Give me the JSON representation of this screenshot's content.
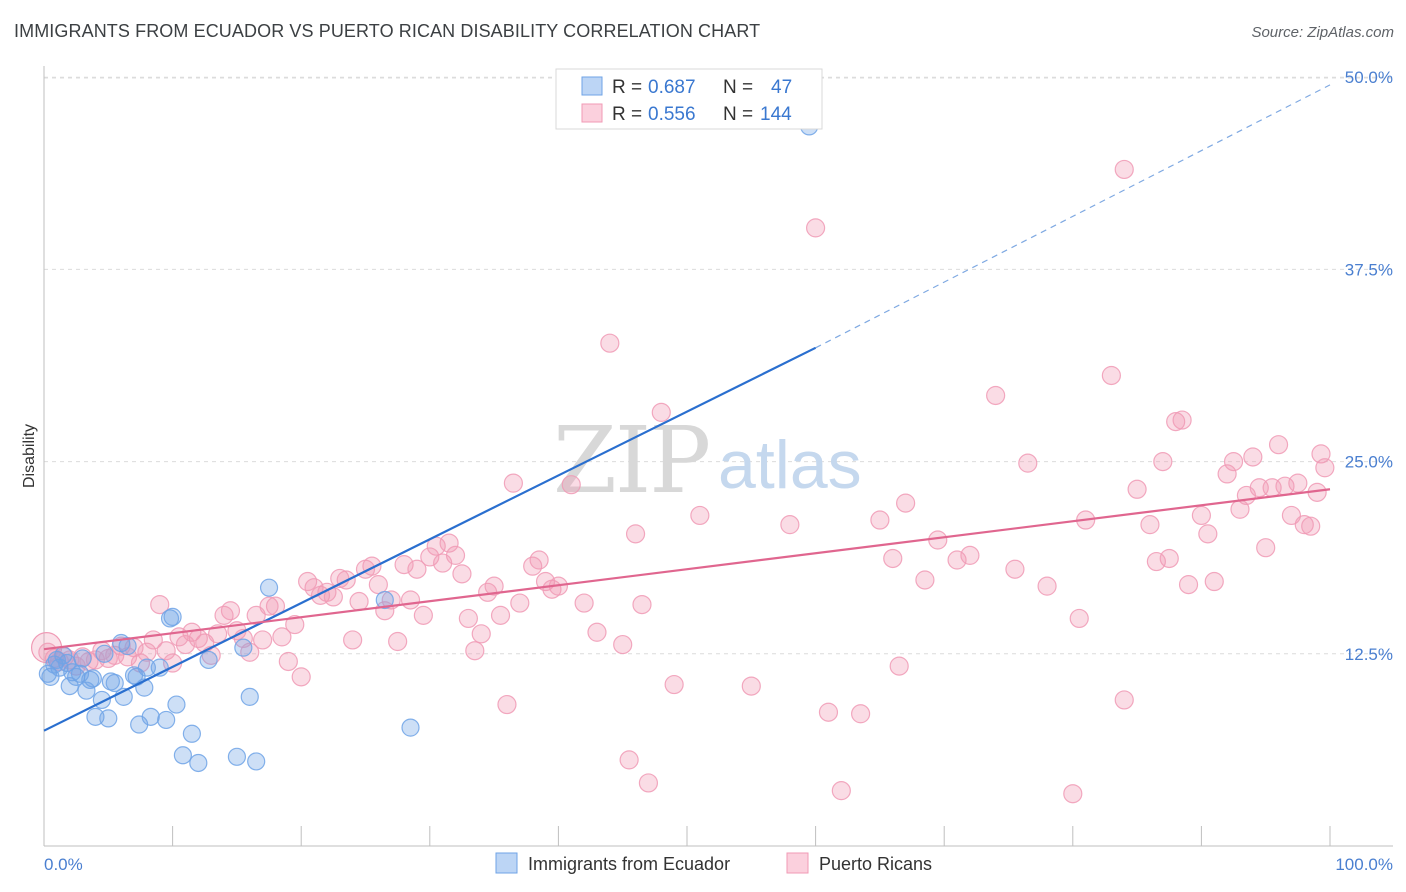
{
  "title": "IMMIGRANTS FROM ECUADOR VS PUERTO RICAN DISABILITY CORRELATION CHART",
  "source": "Source: ZipAtlas.com",
  "colors": {
    "blue": "#6fa3e6",
    "blue_line": "#2a6fcf",
    "pink": "#f09ab5",
    "pink_line": "#e0668f",
    "grid": "#dcdcdc",
    "tick_text": "#4a7fd0"
  },
  "legend": {
    "rows": [
      {
        "r_label": "R =",
        "r_value": "0.687",
        "n_label": "N =",
        "n_value": "47",
        "color": "#6fa3e6"
      },
      {
        "r_label": "R =",
        "r_value": "0.556",
        "n_label": "N =",
        "n_value": "144",
        "color": "#f09ab5"
      }
    ]
  },
  "watermark": {
    "zip": "ZIP",
    "atlas": "atlas"
  },
  "chart_data": {
    "type": "scatter",
    "xlabel": "",
    "ylabel": "Disability",
    "xlim": [
      0,
      100
    ],
    "ylim": [
      0,
      52
    ],
    "x_tick_labels": [
      "0.0%",
      "100.0%"
    ],
    "y_ticks": [
      12.5,
      25.0,
      37.5,
      50.0
    ],
    "y_tick_labels": [
      "12.5%",
      "25.0%",
      "37.5%",
      "50.0%"
    ],
    "grid": true,
    "legend_position": "top-center",
    "series": [
      {
        "name": "Immigrants from Ecuador",
        "color": "#6fa3e6",
        "points": [
          [
            0.3,
            11.2
          ],
          [
            0.5,
            11.0
          ],
          [
            0.8,
            11.8
          ],
          [
            1.0,
            12.1
          ],
          [
            1.2,
            11.6
          ],
          [
            1.5,
            12.4
          ],
          [
            1.8,
            11.9
          ],
          [
            2.0,
            10.4
          ],
          [
            2.2,
            11.3
          ],
          [
            2.5,
            11.0
          ],
          [
            2.8,
            11.2
          ],
          [
            3.0,
            12.2
          ],
          [
            3.3,
            10.1
          ],
          [
            3.6,
            10.8
          ],
          [
            3.8,
            10.9
          ],
          [
            4.0,
            8.4
          ],
          [
            4.5,
            9.5
          ],
          [
            4.7,
            12.5
          ],
          [
            5.0,
            8.3
          ],
          [
            5.2,
            10.7
          ],
          [
            5.5,
            10.6
          ],
          [
            6.0,
            13.2
          ],
          [
            6.2,
            9.7
          ],
          [
            6.5,
            13.0
          ],
          [
            7.0,
            11.1
          ],
          [
            7.2,
            11.0
          ],
          [
            7.4,
            7.9
          ],
          [
            7.8,
            10.3
          ],
          [
            8.0,
            11.6
          ],
          [
            8.3,
            8.4
          ],
          [
            9.0,
            11.6
          ],
          [
            9.5,
            8.2
          ],
          [
            9.8,
            14.8
          ],
          [
            10.0,
            14.9
          ],
          [
            10.3,
            9.2
          ],
          [
            10.8,
            5.9
          ],
          [
            11.5,
            7.3
          ],
          [
            12.0,
            5.4
          ],
          [
            12.8,
            12.1
          ],
          [
            15.0,
            5.8
          ],
          [
            15.5,
            12.9
          ],
          [
            16.0,
            9.7
          ],
          [
            16.5,
            5.5
          ],
          [
            17.5,
            16.8
          ],
          [
            26.5,
            16.0
          ],
          [
            28.5,
            7.7
          ],
          [
            59.5,
            46.8
          ]
        ],
        "trend": {
          "x0": 0,
          "y0": 7.5,
          "x1": 60,
          "y1": 32.4,
          "dash_to_x": 100,
          "dash_to_y": 49.5
        }
      },
      {
        "name": "Puerto Ricans",
        "color": "#f09ab5",
        "points": [
          [
            0.3,
            12.6
          ],
          [
            0.8,
            12.2
          ],
          [
            1.2,
            12.0
          ],
          [
            1.6,
            12.3
          ],
          [
            2.0,
            12.1
          ],
          [
            2.5,
            11.7
          ],
          [
            3.0,
            12.3
          ],
          [
            3.5,
            12.0
          ],
          [
            4.0,
            12.1
          ],
          [
            4.5,
            12.7
          ],
          [
            5.0,
            12.2
          ],
          [
            5.5,
            12.4
          ],
          [
            6.0,
            13.0
          ],
          [
            6.5,
            12.3
          ],
          [
            7.0,
            12.9
          ],
          [
            7.5,
            11.9
          ],
          [
            8.0,
            12.6
          ],
          [
            8.5,
            13.4
          ],
          [
            9.0,
            15.7
          ],
          [
            9.5,
            12.7
          ],
          [
            10.0,
            11.9
          ],
          [
            10.5,
            13.6
          ],
          [
            11.0,
            13.1
          ],
          [
            11.5,
            13.9
          ],
          [
            12.0,
            13.5
          ],
          [
            12.5,
            13.2
          ],
          [
            13.0,
            12.4
          ],
          [
            13.5,
            13.8
          ],
          [
            14.0,
            15.0
          ],
          [
            14.5,
            15.3
          ],
          [
            15.0,
            14.0
          ],
          [
            15.5,
            13.5
          ],
          [
            16.0,
            12.6
          ],
          [
            16.5,
            15.0
          ],
          [
            17.0,
            13.4
          ],
          [
            17.5,
            15.6
          ],
          [
            18.0,
            15.6
          ],
          [
            18.5,
            13.6
          ],
          [
            19.0,
            12.0
          ],
          [
            19.5,
            14.4
          ],
          [
            20.0,
            11.0
          ],
          [
            20.5,
            17.2
          ],
          [
            21.0,
            16.8
          ],
          [
            21.5,
            16.3
          ],
          [
            22.0,
            16.5
          ],
          [
            22.5,
            16.2
          ],
          [
            23.0,
            17.4
          ],
          [
            23.5,
            17.3
          ],
          [
            24.0,
            13.4
          ],
          [
            24.5,
            15.9
          ],
          [
            25.0,
            18.0
          ],
          [
            25.5,
            18.2
          ],
          [
            26.0,
            17.0
          ],
          [
            26.5,
            15.3
          ],
          [
            27.0,
            16.0
          ],
          [
            27.5,
            13.3
          ],
          [
            28.0,
            18.3
          ],
          [
            28.5,
            16.0
          ],
          [
            29.0,
            18.0
          ],
          [
            29.5,
            15.0
          ],
          [
            30.0,
            18.8
          ],
          [
            30.5,
            19.5
          ],
          [
            31.0,
            18.4
          ],
          [
            31.5,
            19.7
          ],
          [
            32.0,
            18.9
          ],
          [
            32.5,
            17.7
          ],
          [
            33.0,
            14.8
          ],
          [
            33.5,
            12.7
          ],
          [
            34.0,
            13.8
          ],
          [
            34.5,
            16.5
          ],
          [
            35.0,
            16.9
          ],
          [
            35.5,
            15.0
          ],
          [
            36.0,
            9.2
          ],
          [
            36.5,
            23.6
          ],
          [
            37.0,
            15.8
          ],
          [
            38.0,
            18.2
          ],
          [
            38.5,
            18.6
          ],
          [
            39.0,
            17.2
          ],
          [
            39.5,
            16.7
          ],
          [
            40.0,
            16.9
          ],
          [
            41.0,
            23.5
          ],
          [
            42.0,
            15.8
          ],
          [
            43.0,
            13.9
          ],
          [
            44.0,
            32.7
          ],
          [
            45.0,
            13.1
          ],
          [
            45.5,
            5.6
          ],
          [
            46.0,
            20.3
          ],
          [
            46.5,
            15.7
          ],
          [
            47.0,
            4.1
          ],
          [
            48.0,
            28.2
          ],
          [
            49.0,
            10.5
          ],
          [
            51.0,
            21.5
          ],
          [
            55.0,
            10.4
          ],
          [
            58.0,
            20.9
          ],
          [
            60.0,
            40.2
          ],
          [
            61.0,
            8.7
          ],
          [
            62.0,
            3.6
          ],
          [
            65.0,
            21.2
          ],
          [
            66.0,
            18.7
          ],
          [
            66.5,
            11.7
          ],
          [
            67.0,
            22.3
          ],
          [
            68.5,
            17.3
          ],
          [
            69.5,
            19.9
          ],
          [
            71.0,
            18.6
          ],
          [
            72.0,
            18.9
          ],
          [
            74.0,
            29.3
          ],
          [
            75.5,
            18.0
          ],
          [
            76.5,
            24.9
          ],
          [
            78.0,
            16.9
          ],
          [
            80.5,
            14.8
          ],
          [
            81.0,
            21.2
          ],
          [
            83.0,
            30.6
          ],
          [
            84.0,
            9.5
          ],
          [
            85.0,
            23.2
          ],
          [
            86.0,
            20.9
          ],
          [
            87.0,
            25.0
          ],
          [
            87.5,
            18.7
          ],
          [
            88.0,
            27.6
          ],
          [
            88.5,
            27.7
          ],
          [
            89.0,
            17.0
          ],
          [
            90.0,
            21.5
          ],
          [
            90.5,
            20.3
          ],
          [
            91.0,
            17.2
          ],
          [
            92.0,
            24.2
          ],
          [
            92.5,
            25.0
          ],
          [
            93.0,
            21.9
          ],
          [
            93.5,
            22.8
          ],
          [
            94.0,
            25.3
          ],
          [
            94.5,
            23.3
          ],
          [
            95.0,
            19.4
          ],
          [
            95.5,
            23.3
          ],
          [
            96.0,
            26.1
          ],
          [
            96.5,
            23.4
          ],
          [
            97.0,
            21.5
          ],
          [
            97.5,
            23.6
          ],
          [
            98.0,
            20.9
          ],
          [
            98.5,
            20.8
          ],
          [
            99.0,
            23.0
          ],
          [
            99.3,
            25.5
          ],
          [
            99.6,
            24.6
          ],
          [
            80.0,
            3.4
          ],
          [
            84.0,
            44.0
          ],
          [
            86.5,
            18.5
          ],
          [
            63.5,
            8.6
          ]
        ],
        "trend": {
          "x0": 0,
          "y0": 12.8,
          "x1": 100,
          "y1": 23.2
        }
      }
    ]
  }
}
